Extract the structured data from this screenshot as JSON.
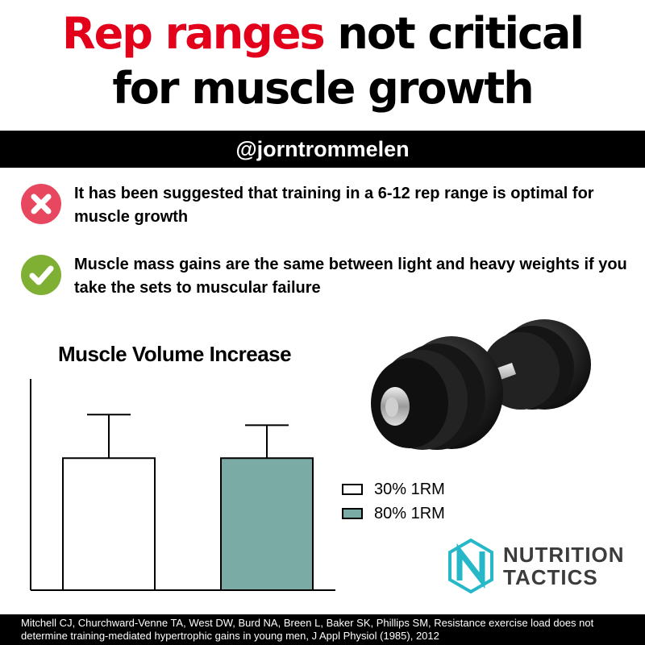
{
  "title": {
    "highlight": "Rep ranges",
    "line1_rest": " not critical",
    "line2": "for muscle growth"
  },
  "handle": "@jorntrommelen",
  "points": [
    {
      "type": "cross",
      "icon": "cross-icon",
      "color": "#e8485f",
      "text": "It has been suggested that training in a 6-12 rep range is optimal for muscle growth"
    },
    {
      "type": "check",
      "icon": "check-icon",
      "color": "#7fb034",
      "text": "Muscle mass gains are the same between light and heavy weights if you take  the sets to muscular failure"
    }
  ],
  "chart_data": {
    "type": "bar",
    "title": "Muscle Volume Increase",
    "categories": [
      "30% 1RM",
      "80% 1RM"
    ],
    "series": [
      {
        "name": "30% 1RM",
        "value": 1.0,
        "error": 0.33,
        "color": "#ffffff"
      },
      {
        "name": "80% 1RM",
        "value": 1.0,
        "error": 0.25,
        "color": "#7aaba4"
      }
    ],
    "ylim": [
      0,
      1.6
    ],
    "xlabel": "",
    "ylabel": "",
    "grid": false,
    "legend": "right"
  },
  "logo": {
    "line1": "NUTRITION",
    "line2": "TACTICS",
    "brand_color": "#26b8c8"
  },
  "citation": {
    "line1": "Mitchell CJ, Churchward-Venne TA, West DW, Burd NA, Breen L, Baker SK, Phillips SM, Resistance exercise load does not",
    "line2": "determine training-mediated hypertrophic gains in young men, J Appl Physiol (1985), 2012"
  }
}
